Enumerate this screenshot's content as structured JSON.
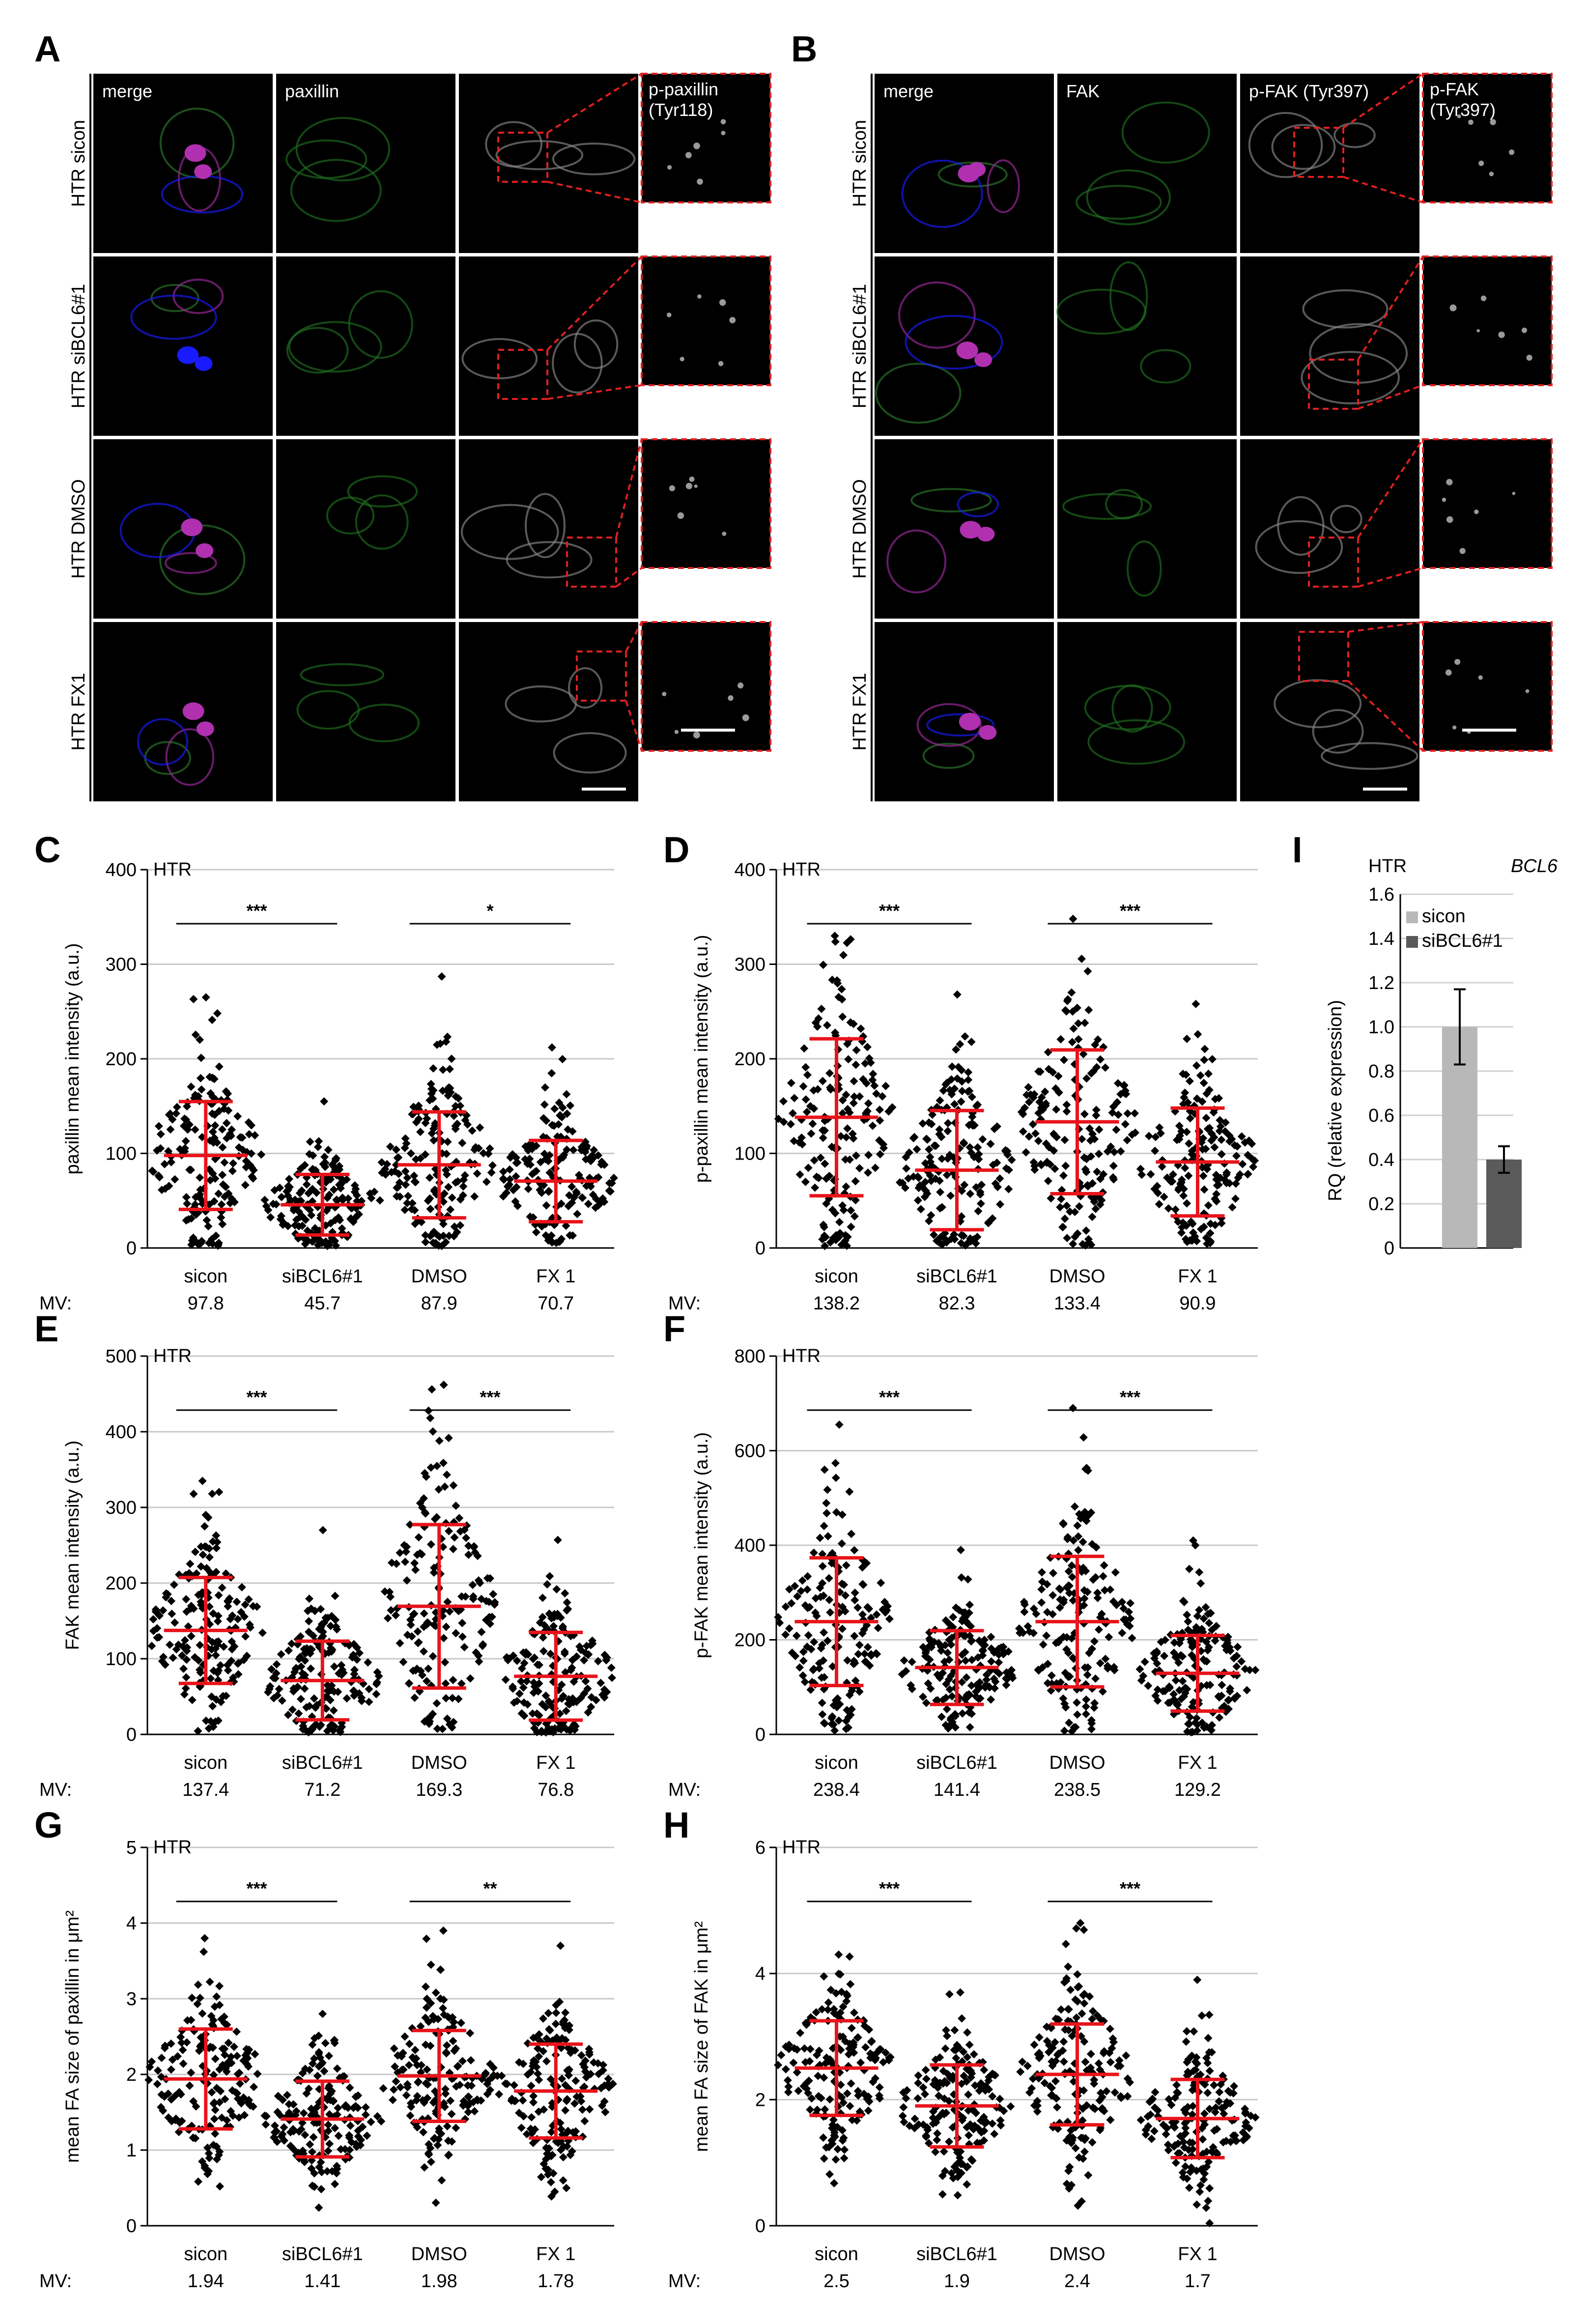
{
  "panelA": {
    "label": "A",
    "headers": [
      "merge",
      "paxillin",
      "",
      "p-paxillin (Tyr118)"
    ],
    "header_colors": [
      "#ffffff",
      "#3ad13a",
      "#ffffff",
      "#ffffff"
    ],
    "rows": [
      "HTR sicon",
      "HTR siBCL6#1",
      "HTR DMSO",
      "HTR FX1"
    ],
    "merge_colors": [
      "green/magenta",
      "green/blue",
      "green/magenta",
      "red/magenta"
    ]
  },
  "panelB": {
    "label": "B",
    "headers": [
      "merge",
      "FAK",
      "p-FAK (Tyr397)",
      "p-FAK (Tyr397)"
    ],
    "header_colors": [
      "#ffffff",
      "#3ad13a",
      "#ffffff",
      "#ffffff"
    ],
    "rows": [
      "HTR sicon",
      "HTR siBCL6#1",
      "HTR DMSO",
      "HTR FX1"
    ]
  },
  "chart_data": [
    {
      "id": "C",
      "type": "scatter",
      "title": "HTR",
      "ylabel": "paxillin mean intensity (a.u.)",
      "ylim": [
        0,
        400
      ],
      "yticks": [
        0,
        100,
        200,
        300,
        400
      ],
      "categories": [
        "sicon",
        "siBCL6#1",
        "DMSO",
        "FX 1"
      ],
      "mv_label": "MV:",
      "mv": [
        "97.8",
        "45.7",
        "87.9",
        "70.7"
      ],
      "mean": [
        97.8,
        45.7,
        87.9,
        70.7
      ],
      "sd": [
        57,
        32,
        56,
        43
      ],
      "max": [
        265,
        155,
        287,
        212
      ],
      "sig": [
        {
          "from": 0,
          "to": 1,
          "text": "***"
        },
        {
          "from": 2,
          "to": 3,
          "text": "*"
        }
      ]
    },
    {
      "id": "D",
      "type": "scatter",
      "title": "HTR",
      "ylabel": "p-paxillin mean intensity (a.u.)",
      "ylim": [
        0,
        400
      ],
      "yticks": [
        0,
        100,
        200,
        300,
        400
      ],
      "categories": [
        "sicon",
        "siBCL6#1",
        "DMSO",
        "FX 1"
      ],
      "mv_label": "MV:",
      "mv": [
        "138.2",
        "82.3",
        "133.4",
        "90.9"
      ],
      "mean": [
        138.2,
        82.3,
        133.4,
        90.9
      ],
      "sd": [
        83,
        63,
        76,
        57
      ],
      "max": [
        330,
        268,
        348,
        258
      ],
      "sig": [
        {
          "from": 0,
          "to": 1,
          "text": "***"
        },
        {
          "from": 2,
          "to": 3,
          "text": "***"
        }
      ]
    },
    {
      "id": "E",
      "type": "scatter",
      "title": "HTR",
      "ylabel": "FAK mean intensity (a.u.)",
      "ylim": [
        0,
        500
      ],
      "yticks": [
        0,
        100,
        200,
        300,
        400,
        500
      ],
      "categories": [
        "sicon",
        "siBCL6#1",
        "DMSO",
        "FX 1"
      ],
      "mv_label": "MV:",
      "mv": [
        "137.4",
        "71.2",
        "169.3",
        "76.8"
      ],
      "mean": [
        137.4,
        71.2,
        169.3,
        76.8
      ],
      "sd": [
        70,
        52,
        108,
        58
      ],
      "max": [
        335,
        270,
        462,
        257
      ],
      "sig": [
        {
          "from": 0,
          "to": 1,
          "text": "***"
        },
        {
          "from": 2,
          "to": 3,
          "text": "***"
        }
      ]
    },
    {
      "id": "F",
      "type": "scatter",
      "title": "HTR",
      "ylabel": "p-FAK mean intensity (a.u.)",
      "ylim": [
        0,
        800
      ],
      "yticks": [
        0,
        200,
        400,
        600,
        800
      ],
      "categories": [
        "sicon",
        "siBCL6#1",
        "DMSO",
        "FX 1"
      ],
      "mv_label": "MV:",
      "mv": [
        "238.4",
        "141.4",
        "238.5",
        "129.2"
      ],
      "mean": [
        238.4,
        141.4,
        238.5,
        129.2
      ],
      "sd": [
        135,
        78,
        138,
        80
      ],
      "max": [
        655,
        390,
        690,
        410
      ],
      "sig": [
        {
          "from": 0,
          "to": 1,
          "text": "***"
        },
        {
          "from": 2,
          "to": 3,
          "text": "***"
        }
      ]
    },
    {
      "id": "G",
      "type": "scatter",
      "title": "HTR",
      "ylabel": "mean FA size of paxillin in μm²",
      "ylim": [
        0,
        5
      ],
      "yticks": [
        0,
        1,
        2,
        3,
        4,
        5
      ],
      "categories": [
        "sicon",
        "siBCL6#1",
        "DMSO",
        "FX 1"
      ],
      "mv_label": "MV:",
      "mv": [
        "1.94",
        "1.41",
        "1.98",
        "1.78"
      ],
      "mean": [
        1.94,
        1.41,
        1.98,
        1.78
      ],
      "sd": [
        0.66,
        0.5,
        0.6,
        0.62
      ],
      "max": [
        3.8,
        2.8,
        3.9,
        3.7
      ],
      "sig": [
        {
          "from": 0,
          "to": 1,
          "text": "***"
        },
        {
          "from": 2,
          "to": 3,
          "text": "**"
        }
      ]
    },
    {
      "id": "H",
      "type": "scatter",
      "title": "HTR",
      "ylabel": "mean FA size of FAK in μm²",
      "ylim": [
        0,
        6
      ],
      "yticks": [
        0,
        2,
        4,
        6
      ],
      "categories": [
        "sicon",
        "siBCL6#1",
        "DMSO",
        "FX 1"
      ],
      "mv_label": "MV:",
      "mv": [
        "2.5",
        "1.9",
        "2.4",
        "1.7"
      ],
      "mean": [
        2.5,
        1.9,
        2.4,
        1.7
      ],
      "sd": [
        0.75,
        0.65,
        0.8,
        0.62
      ],
      "max": [
        4.3,
        3.7,
        4.8,
        3.9
      ],
      "sig": [
        {
          "from": 0,
          "to": 1,
          "text": "***"
        },
        {
          "from": 2,
          "to": 3,
          "text": "***"
        }
      ]
    },
    {
      "id": "I",
      "type": "bar",
      "title": "HTR",
      "gene": "BCL6",
      "ylabel": "RQ (relative expression)",
      "ylim": [
        0,
        1.6
      ],
      "yticks": [
        "0",
        "0.2",
        "0.4",
        "0.6",
        "0.8",
        "1.0",
        "1.2",
        "1.4",
        "1.6"
      ],
      "series": [
        {
          "name": "sicon",
          "value": 1.0,
          "error": 0.17,
          "color": "#b8b8b8"
        },
        {
          "name": "siBCL6#1",
          "value": 0.4,
          "error": 0.06,
          "color": "#5a5a5a"
        }
      ]
    }
  ]
}
